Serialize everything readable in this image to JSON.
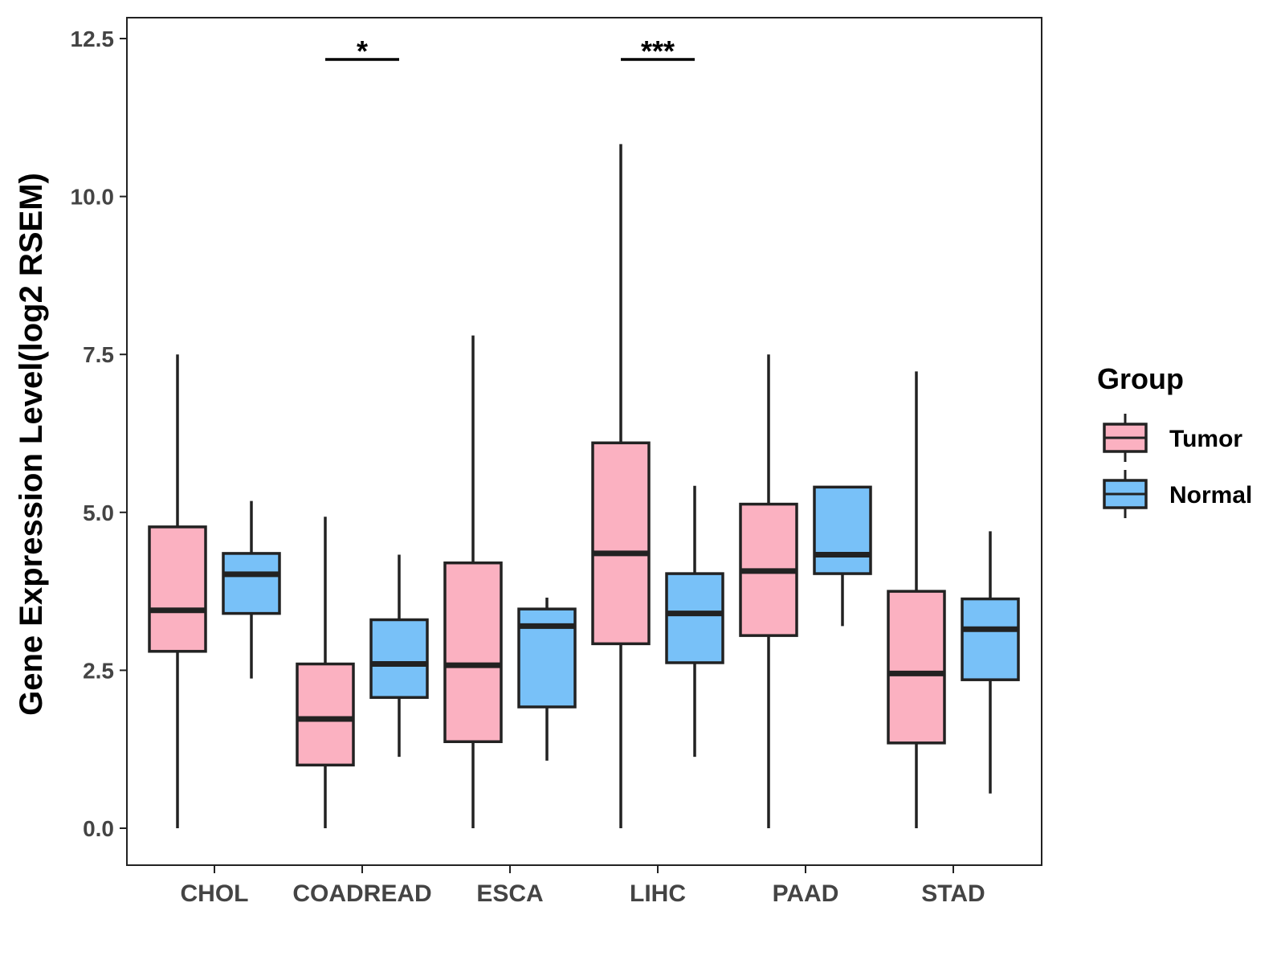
{
  "chart_data": {
    "type": "boxplot",
    "title": "",
    "xlabel": "",
    "ylabel": "Gene Expression Level(log2 RSEM)",
    "ylim": [
      -0.6,
      12.9
    ],
    "yticks": [
      0.0,
      2.5,
      5.0,
      7.5,
      10.0,
      12.5
    ],
    "ytick_labels": [
      "0.0",
      "2.5",
      "5.0",
      "7.5",
      "10.0",
      "12.5"
    ],
    "categories": [
      "CHOL",
      "COADREAD",
      "ESCA",
      "LIHC",
      "PAAD",
      "STAD"
    ],
    "legend": {
      "title": "Group",
      "position": "right",
      "entries": [
        {
          "name": "Tumor",
          "color": "#FBB1C1"
        },
        {
          "name": "Normal",
          "color": "#78C1F8"
        }
      ]
    },
    "series": [
      {
        "name": "Tumor",
        "color": "#FBB1C1",
        "boxes": [
          {
            "category": "CHOL",
            "min": 0.0,
            "q1": 2.8,
            "median": 3.45,
            "q3": 4.77,
            "max": 7.5
          },
          {
            "category": "COADREAD",
            "min": 0.0,
            "q1": 1.0,
            "median": 1.73,
            "q3": 2.6,
            "max": 4.93
          },
          {
            "category": "ESCA",
            "min": 0.0,
            "q1": 1.37,
            "median": 2.58,
            "q3": 4.2,
            "max": 7.8
          },
          {
            "category": "LIHC",
            "min": 0.0,
            "q1": 2.92,
            "median": 4.35,
            "q3": 6.1,
            "max": 10.83
          },
          {
            "category": "PAAD",
            "min": 0.0,
            "q1": 3.05,
            "median": 4.07,
            "q3": 5.13,
            "max": 7.5
          },
          {
            "category": "STAD",
            "min": 0.0,
            "q1": 1.35,
            "median": 2.45,
            "q3": 3.75,
            "max": 7.23
          }
        ]
      },
      {
        "name": "Normal",
        "color": "#78C1F8",
        "boxes": [
          {
            "category": "CHOL",
            "min": 2.37,
            "q1": 3.4,
            "median": 4.02,
            "q3": 4.35,
            "max": 5.18
          },
          {
            "category": "COADREAD",
            "min": 1.13,
            "q1": 2.07,
            "median": 2.6,
            "q3": 3.3,
            "max": 4.33
          },
          {
            "category": "ESCA",
            "min": 1.07,
            "q1": 1.92,
            "median": 3.2,
            "q3": 3.47,
            "max": 3.65
          },
          {
            "category": "LIHC",
            "min": 1.13,
            "q1": 2.62,
            "median": 3.4,
            "q3": 4.03,
            "max": 5.42
          },
          {
            "category": "PAAD",
            "min": 3.2,
            "q1": 4.03,
            "median": 4.33,
            "q3": 5.4,
            "max": 5.4
          },
          {
            "category": "STAD",
            "min": 0.55,
            "q1": 2.35,
            "median": 3.15,
            "q3": 3.63,
            "max": 4.7
          }
        ]
      }
    ],
    "annotations": [
      {
        "category": "COADREAD",
        "label": "*",
        "y": 12.17
      },
      {
        "category": "LIHC",
        "label": "***",
        "y": 12.17
      }
    ]
  }
}
